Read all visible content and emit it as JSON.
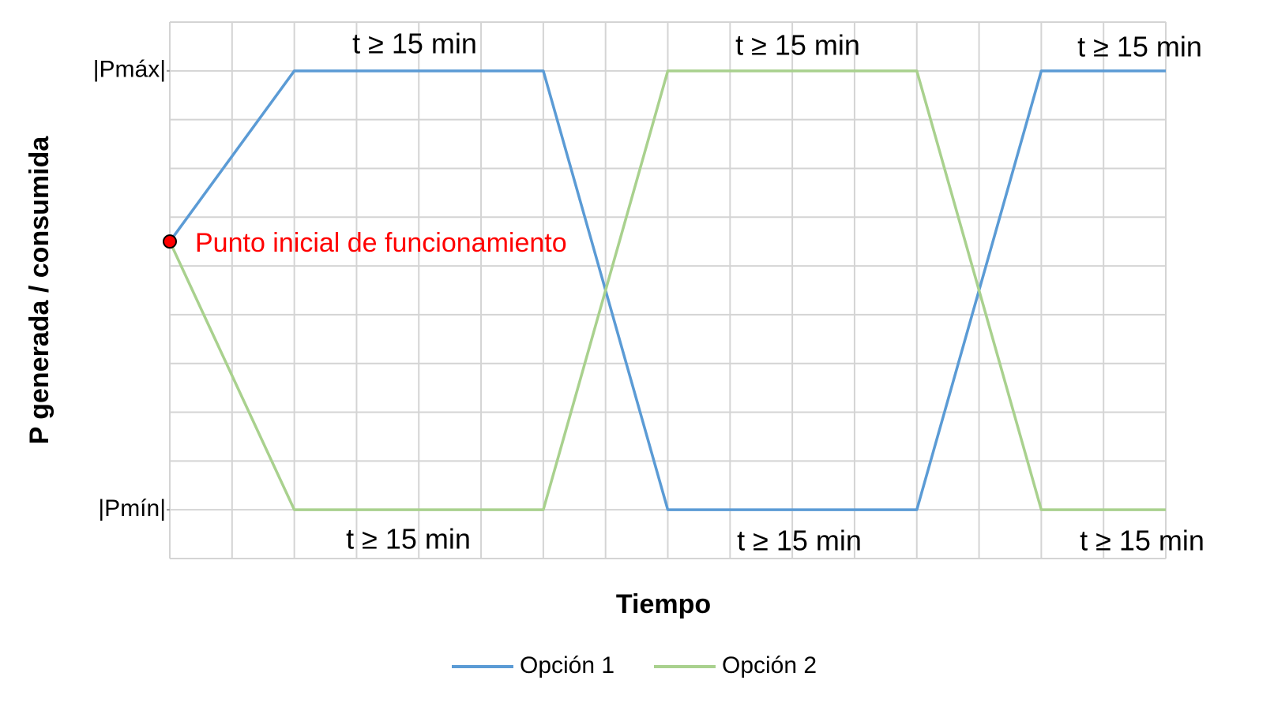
{
  "chart_data": {
    "type": "line",
    "x_label": "Tiempo",
    "y_label": "P generada / consumida",
    "xlim": [
      0,
      16
    ],
    "ylim": [
      0,
      11
    ],
    "yticks": [
      {
        "value": 10,
        "label": "|Pmáx|"
      },
      {
        "value": 1,
        "label": "|Pmín|"
      }
    ],
    "grid": true,
    "x": [
      0,
      2,
      6,
      8,
      12,
      14,
      16
    ],
    "series": [
      {
        "name": "Opción 1",
        "color": "#5b9bd5",
        "values": [
          6.5,
          10,
          10,
          1,
          1,
          10,
          10
        ]
      },
      {
        "name": "Opción 2",
        "color": "#a9d18e",
        "values": [
          6.5,
          1,
          1,
          10,
          10,
          1,
          1
        ]
      }
    ],
    "start_point": {
      "x": 0,
      "y": 6.5,
      "label": "Punto inicial de funcionamiento",
      "color": "#ff0000"
    },
    "annotations": [
      "t ≥ 15 min",
      "t ≥ 15 min",
      "t ≥ 15 min",
      "t ≥ 15 min",
      "t ≥ 15 min",
      "t ≥ 15 min"
    ],
    "legend": "bottom"
  }
}
